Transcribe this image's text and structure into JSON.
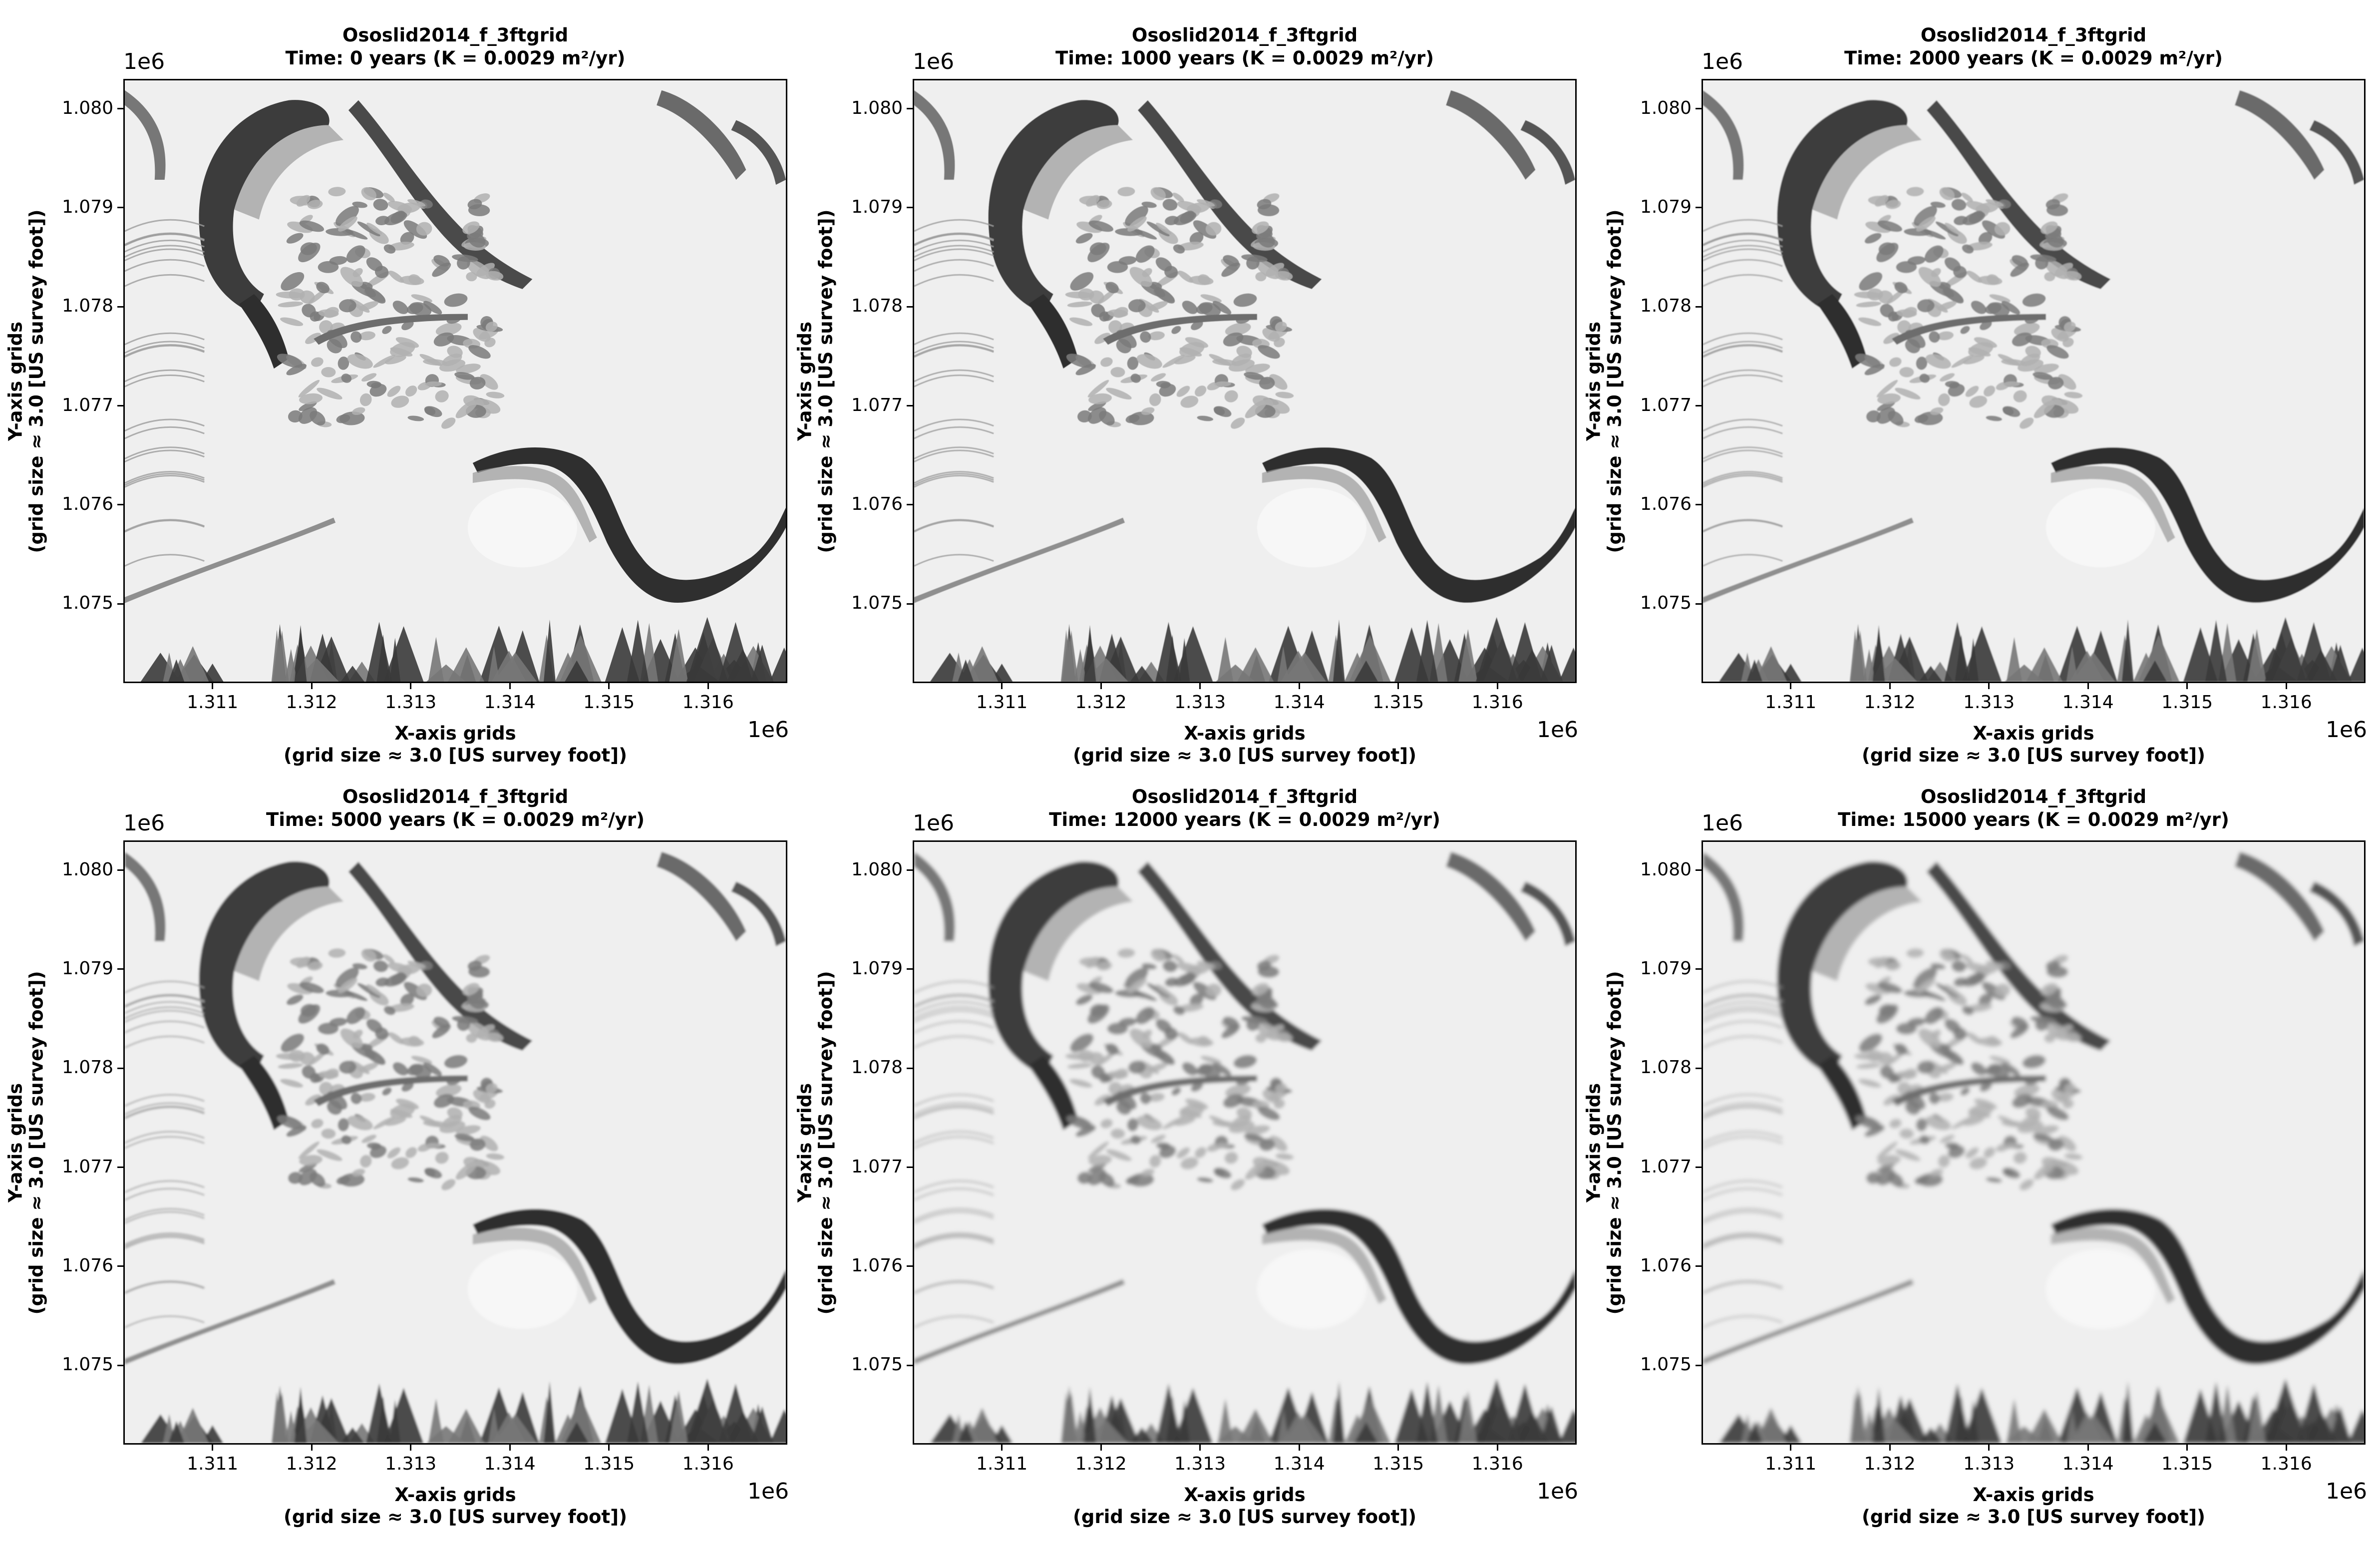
{
  "chart_data": [
    {
      "type": "heatmap",
      "title": "Ososlid2014_f_3ftgrid",
      "subtitle": "Time: 0 years (K = 0.0029 m²/yr)",
      "time_years": 0,
      "blur": 0,
      "xlabel": "X-axis grids",
      "xlabel2": "(grid size ≈ 3.0 [US survey foot])",
      "ylabel": "Y-axis grids",
      "ylabel2": "(grid size ≈ 3.0 [US survey foot])",
      "x_ticks": [
        "1.311",
        "1.312",
        "1.313",
        "1.314",
        "1.315",
        "1.316"
      ],
      "y_ticks": [
        "1.080",
        "1.079",
        "1.078",
        "1.077",
        "1.076",
        "1.075"
      ],
      "x_scale": "1e6",
      "y_scale": "1e6",
      "xlim": [
        1310.1,
        1316.8
      ],
      "ylim": [
        1074.2,
        1080.3
      ],
      "colormap": "gray hillshade"
    },
    {
      "type": "heatmap",
      "title": "Ososlid2014_f_3ftgrid",
      "subtitle": "Time: 1000 years (K = 0.0029 m²/yr)",
      "time_years": 1000,
      "blur": 0.6,
      "xlabel": "X-axis grids",
      "xlabel2": "(grid size ≈ 3.0 [US survey foot])",
      "ylabel": "Y-axis grids",
      "ylabel2": "(grid size ≈ 3.0 [US survey foot])",
      "x_ticks": [
        "1.311",
        "1.312",
        "1.313",
        "1.314",
        "1.315",
        "1.316"
      ],
      "y_ticks": [
        "1.080",
        "1.079",
        "1.078",
        "1.077",
        "1.076",
        "1.075"
      ],
      "x_scale": "1e6",
      "y_scale": "1e6",
      "xlim": [
        1310.1,
        1316.8
      ],
      "ylim": [
        1074.2,
        1080.3
      ],
      "colormap": "gray hillshade"
    },
    {
      "type": "heatmap",
      "title": "Ososlid2014_f_3ftgrid",
      "subtitle": "Time: 2000 years (K = 0.0029 m²/yr)",
      "time_years": 2000,
      "blur": 1.2,
      "xlabel": "X-axis grids",
      "xlabel2": "(grid size ≈ 3.0 [US survey foot])",
      "ylabel": "Y-axis grids",
      "ylabel2": "(grid size ≈ 3.0 [US survey foot])",
      "x_ticks": [
        "1.311",
        "1.312",
        "1.313",
        "1.314",
        "1.315",
        "1.316"
      ],
      "y_ticks": [
        "1.080",
        "1.079",
        "1.078",
        "1.077",
        "1.076",
        "1.075"
      ],
      "x_scale": "1e6",
      "y_scale": "1e6",
      "xlim": [
        1310.1,
        1316.8
      ],
      "ylim": [
        1074.2,
        1080.3
      ],
      "colormap": "gray hillshade"
    },
    {
      "type": "heatmap",
      "title": "Ososlid2014_f_3ftgrid",
      "subtitle": "Time: 5000 years (K = 0.0029 m²/yr)",
      "time_years": 5000,
      "blur": 2.2,
      "xlabel": "X-axis grids",
      "xlabel2": "(grid size ≈ 3.0 [US survey foot])",
      "ylabel": "Y-axis grids",
      "ylabel2": "(grid size ≈ 3.0 [US survey foot])",
      "x_ticks": [
        "1.311",
        "1.312",
        "1.313",
        "1.314",
        "1.315",
        "1.316"
      ],
      "y_ticks": [
        "1.080",
        "1.079",
        "1.078",
        "1.077",
        "1.076",
        "1.075"
      ],
      "x_scale": "1e6",
      "y_scale": "1e6",
      "xlim": [
        1310.1,
        1316.8
      ],
      "ylim": [
        1074.2,
        1080.3
      ],
      "colormap": "gray hillshade"
    },
    {
      "type": "heatmap",
      "title": "Ososlid2014_f_3ftgrid",
      "subtitle": "Time: 12000 years (K = 0.0029 m²/yr)",
      "time_years": 12000,
      "blur": 3.5,
      "xlabel": "X-axis grids",
      "xlabel2": "(grid size ≈ 3.0 [US survey foot])",
      "ylabel": "Y-axis grids",
      "ylabel2": "(grid size ≈ 3.0 [US survey foot])",
      "x_ticks": [
        "1.311",
        "1.312",
        "1.313",
        "1.314",
        "1.315",
        "1.316"
      ],
      "y_ticks": [
        "1.080",
        "1.079",
        "1.078",
        "1.077",
        "1.076",
        "1.075"
      ],
      "x_scale": "1e6",
      "y_scale": "1e6",
      "xlim": [
        1310.1,
        1316.8
      ],
      "ylim": [
        1074.2,
        1080.3
      ],
      "colormap": "gray hillshade"
    },
    {
      "type": "heatmap",
      "title": "Ososlid2014_f_3ftgrid",
      "subtitle": "Time: 15000 years (K = 0.0029 m²/yr)",
      "time_years": 15000,
      "blur": 4.0,
      "xlabel": "X-axis grids",
      "xlabel2": "(grid size ≈ 3.0 [US survey foot])",
      "ylabel": "Y-axis grids",
      "ylabel2": "(grid size ≈ 3.0 [US survey foot])",
      "x_ticks": [
        "1.311",
        "1.312",
        "1.313",
        "1.314",
        "1.315",
        "1.316"
      ],
      "y_ticks": [
        "1.080",
        "1.079",
        "1.078",
        "1.077",
        "1.076",
        "1.075"
      ],
      "x_scale": "1e6",
      "y_scale": "1e6",
      "xlim": [
        1310.1,
        1316.8
      ],
      "ylim": [
        1074.2,
        1080.3
      ],
      "colormap": "gray hillshade"
    }
  ]
}
